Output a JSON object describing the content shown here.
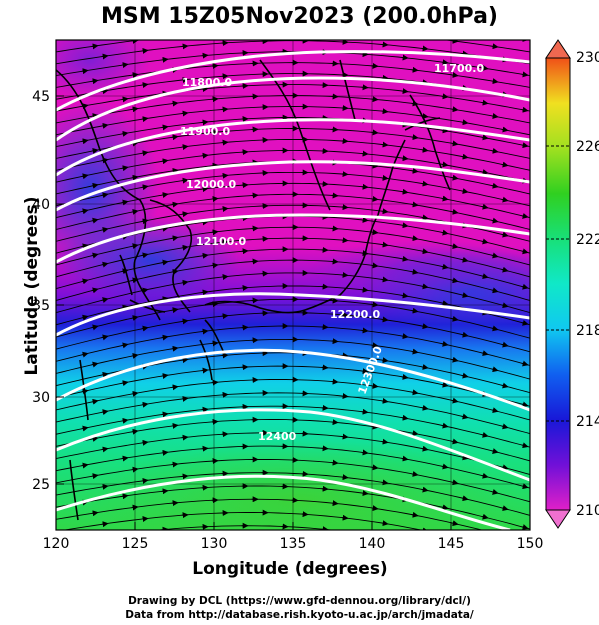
{
  "title": "MSM 15Z05Nov2023 (200.0hPa)",
  "x_axis_label": "Longitude (degrees)",
  "y_axis_label": "Latitude  (degrees)",
  "x_ticks": [
    "120",
    "125",
    "130",
    "135",
    "140",
    "145",
    "150"
  ],
  "y_ticks": [
    "25",
    "30",
    "35",
    "40",
    "45"
  ],
  "colorbar": {
    "ticks": [
      "230",
      "226",
      "222",
      "218",
      "214",
      "210"
    ],
    "min": 210,
    "max": 230
  },
  "contour_labels": [
    "11700.0",
    "11800.0",
    "11900.0",
    "12000.0",
    "12100.0",
    "12200.0",
    "12300.0",
    "12400"
  ],
  "credit_line_1": "Drawing by DCL (https://www.gfd-dennou.org/library/dcl/)",
  "credit_line_2": "Data from http://database.rish.kyoto-u.ac.jp/arch/jmadata/"
}
